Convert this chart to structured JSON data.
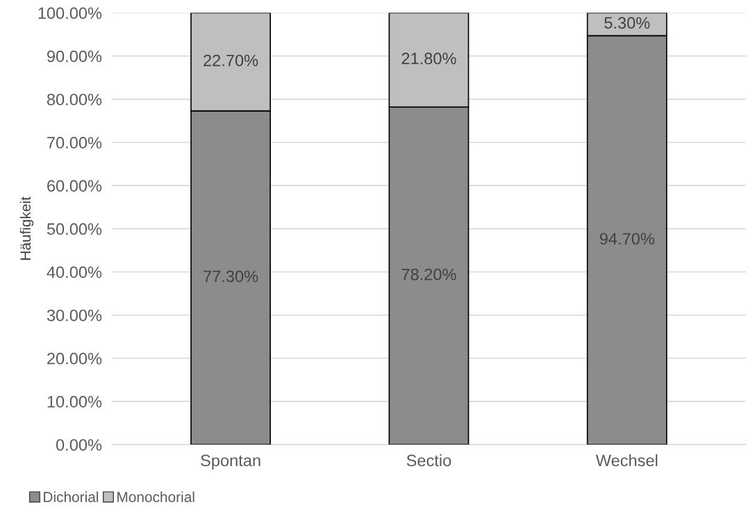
{
  "chart_data": {
    "type": "bar",
    "stacked": true,
    "ylabel": "Häufigkeit",
    "categories": [
      "Spontan",
      "Sectio",
      "Wechsel"
    ],
    "series": [
      {
        "name": "Dichorial",
        "color": "#8c8c8c",
        "values": [
          77.3,
          78.2,
          94.7
        ],
        "value_labels": [
          "77.30%",
          "78.20%",
          "94.70%"
        ]
      },
      {
        "name": "Monochorial",
        "color": "#bfbfbf",
        "values": [
          22.7,
          21.8,
          5.3
        ],
        "value_labels": [
          "22.70%",
          "21.80%",
          "5.30%"
        ]
      }
    ],
    "ylim": [
      0,
      100
    ],
    "yticks": [
      {
        "value": 0,
        "label": "0.00%"
      },
      {
        "value": 10,
        "label": "10.00%"
      },
      {
        "value": 20,
        "label": "20.00%"
      },
      {
        "value": 30,
        "label": "30.00%"
      },
      {
        "value": 40,
        "label": "40.00%"
      },
      {
        "value": 50,
        "label": "50.00%"
      },
      {
        "value": 60,
        "label": "60.00%"
      },
      {
        "value": 70,
        "label": "70.00%"
      },
      {
        "value": 80,
        "label": "80.00%"
      },
      {
        "value": 90,
        "label": "90.00%"
      },
      {
        "value": 100,
        "label": "100.00%"
      }
    ],
    "grid": "y",
    "legend": "bottom left"
  }
}
